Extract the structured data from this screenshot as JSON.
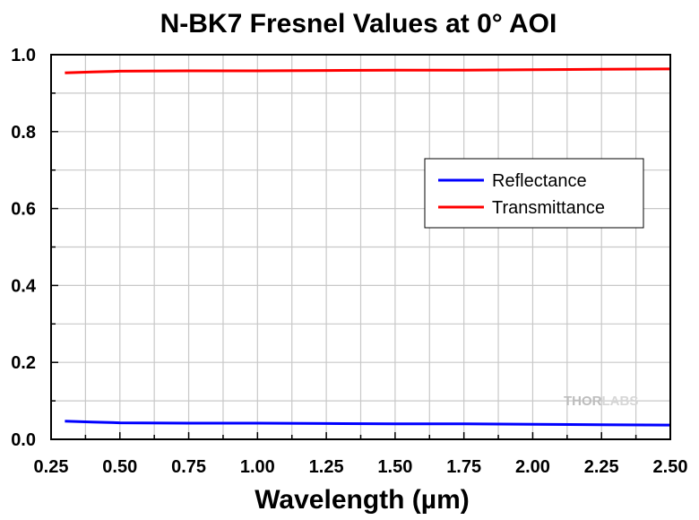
{
  "chart_data": {
    "type": "line",
    "title": "N-BK7 Fresnel Values at 0° AOI",
    "xlabel": "Wavelength (µm)",
    "ylabel": "",
    "xlim": [
      0.25,
      2.5
    ],
    "ylim": [
      0.0,
      1.0
    ],
    "xticks": [
      "0.25",
      "0.50",
      "0.75",
      "1.00",
      "1.25",
      "1.50",
      "1.75",
      "2.00",
      "2.25",
      "2.50"
    ],
    "yticks": [
      "0.0",
      "0.2",
      "0.4",
      "0.6",
      "0.8",
      "1.0"
    ],
    "grid": true,
    "legend_position": "right-middle",
    "series": [
      {
        "name": "Reflectance",
        "color": "#0000ff",
        "x": [
          0.3,
          0.35,
          0.4,
          0.5,
          0.75,
          1.0,
          1.25,
          1.5,
          1.75,
          2.0,
          2.25,
          2.5
        ],
        "y": [
          0.047,
          0.046,
          0.045,
          0.043,
          0.042,
          0.042,
          0.041,
          0.04,
          0.04,
          0.039,
          0.038,
          0.037
        ]
      },
      {
        "name": "Transmittance",
        "color": "#ff0000",
        "x": [
          0.3,
          0.35,
          0.4,
          0.5,
          0.75,
          1.0,
          1.25,
          1.5,
          1.75,
          2.0,
          2.25,
          2.5
        ],
        "y": [
          0.953,
          0.954,
          0.955,
          0.957,
          0.958,
          0.958,
          0.959,
          0.96,
          0.96,
          0.961,
          0.962,
          0.963
        ]
      }
    ]
  },
  "watermark": {
    "part_a": "THOR",
    "part_b": "LABS"
  }
}
